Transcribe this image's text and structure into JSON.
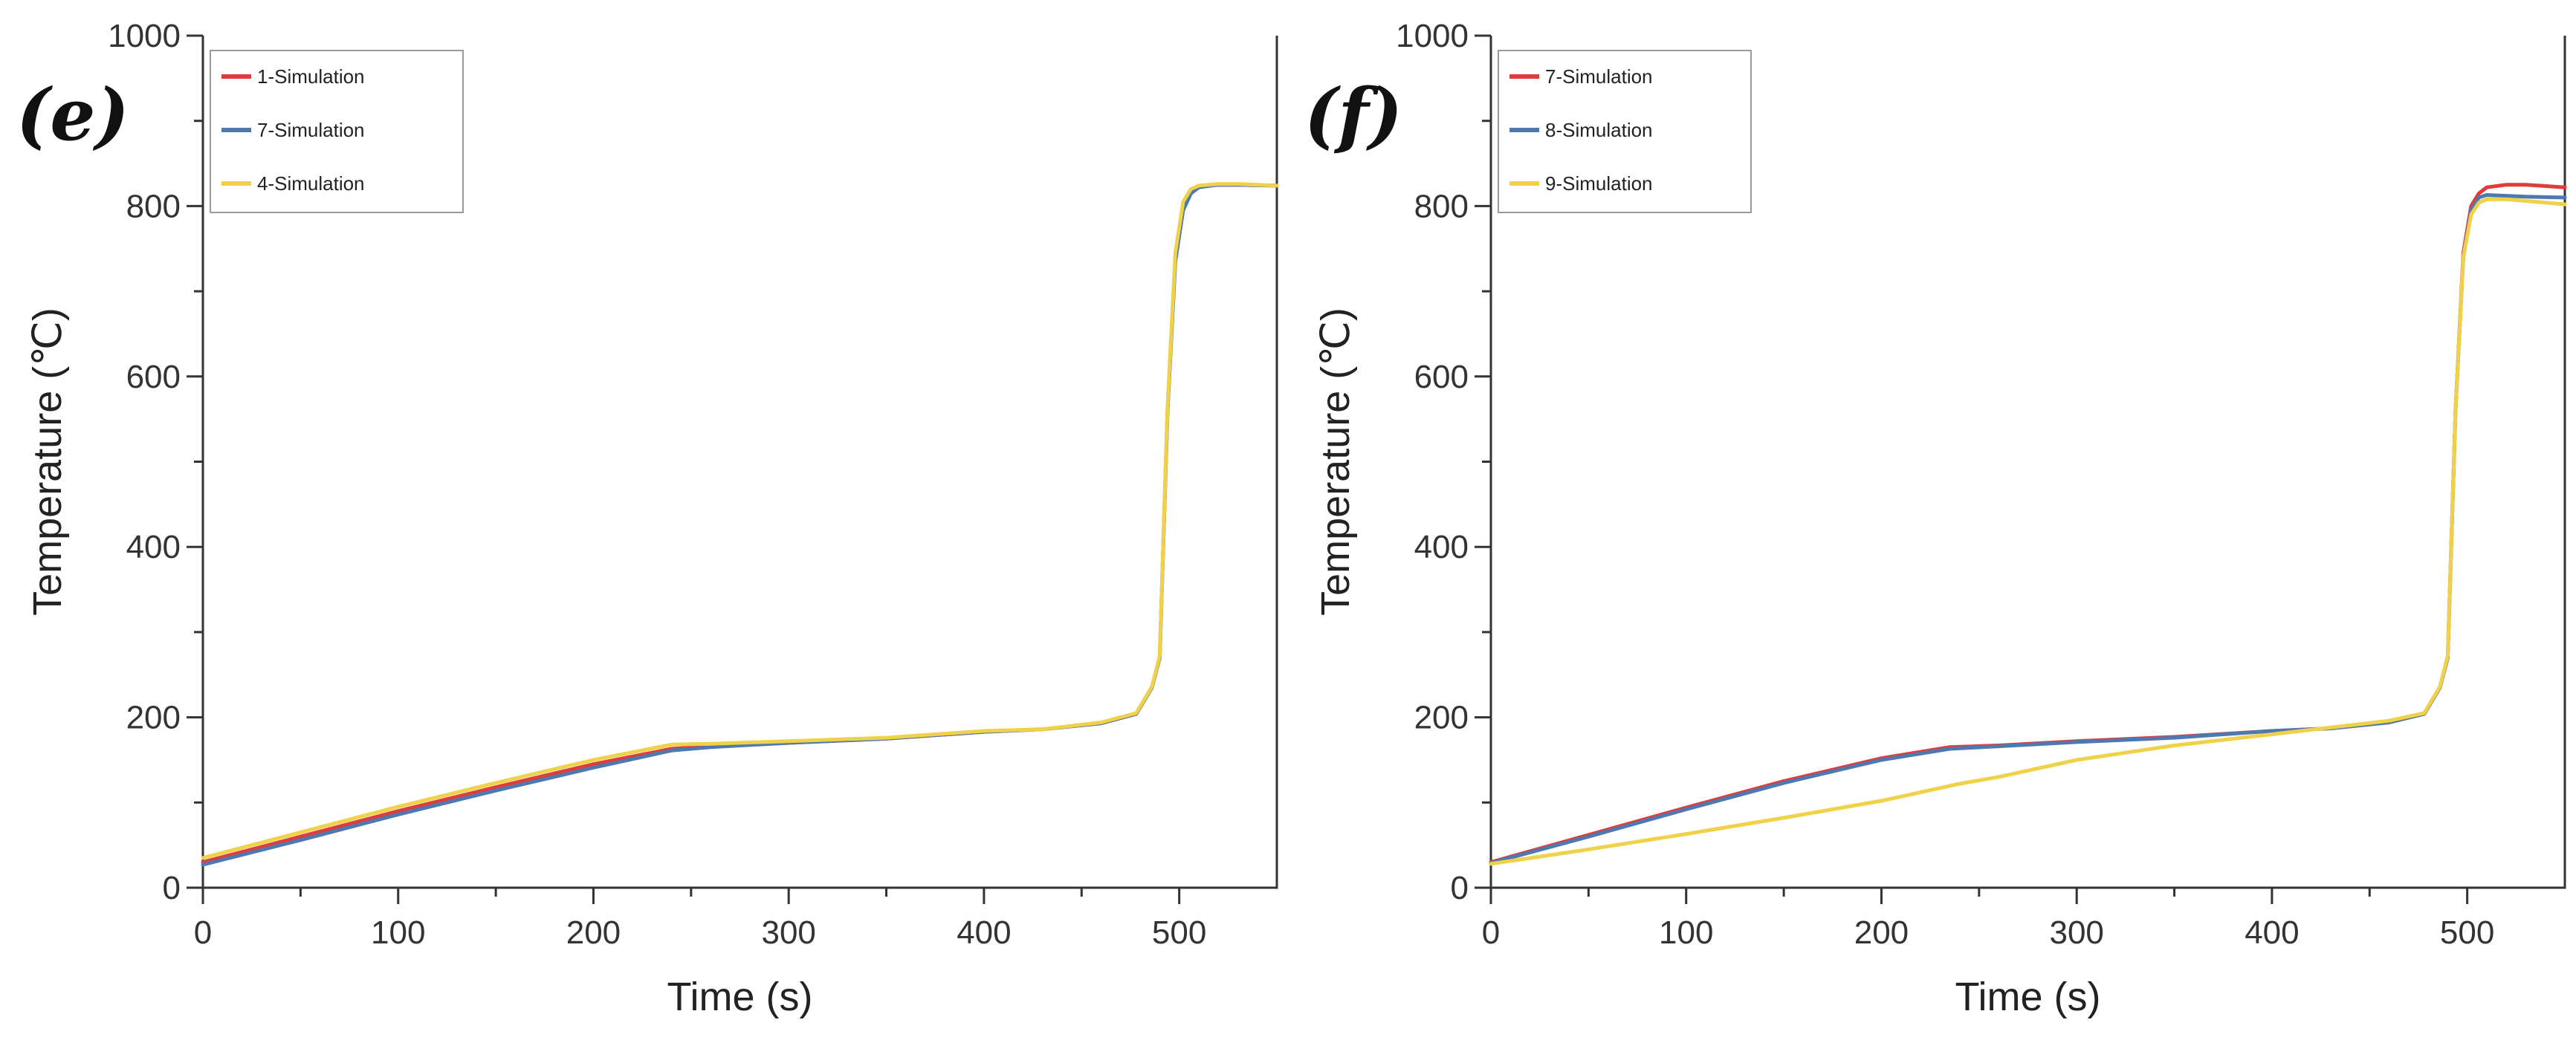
{
  "chart_data": [
    {
      "type": "line",
      "panel_label": "(e)",
      "xlabel": "Time (s)",
      "ylabel": "Temperature (℃)",
      "xlim": [
        0,
        550
      ],
      "ylim": [
        0,
        1000
      ],
      "xticks": [
        0,
        100,
        200,
        300,
        400,
        500
      ],
      "yticks": [
        0,
        200,
        400,
        600,
        800,
        1000
      ],
      "legend_position": "top-left",
      "series": [
        {
          "name": "1-Simulation",
          "color": "#e03c3c",
          "x": [
            0,
            50,
            100,
            150,
            200,
            240,
            260,
            300,
            350,
            400,
            430,
            460,
            478,
            486,
            490,
            494,
            498,
            502,
            506,
            510,
            520,
            530,
            550
          ],
          "y": [
            30,
            60,
            90,
            118,
            145,
            163,
            166,
            170,
            175,
            183,
            186,
            193,
            204,
            235,
            270,
            560,
            740,
            800,
            818,
            823,
            825,
            825,
            824
          ]
        },
        {
          "name": "7-Simulation",
          "color": "#4e79b0",
          "x": [
            0,
            50,
            100,
            150,
            200,
            240,
            260,
            300,
            350,
            400,
            430,
            460,
            478,
            486,
            490,
            494,
            498,
            502,
            506,
            510,
            520,
            530,
            550
          ],
          "y": [
            27,
            56,
            86,
            114,
            141,
            161,
            165,
            170,
            175,
            183,
            186,
            193,
            204,
            235,
            270,
            560,
            735,
            795,
            815,
            822,
            825,
            825,
            824
          ]
        },
        {
          "name": "4-Simulation",
          "color": "#f0d24a",
          "x": [
            0,
            50,
            100,
            150,
            200,
            240,
            260,
            300,
            350,
            400,
            430,
            460,
            478,
            486,
            490,
            494,
            498,
            502,
            506,
            510,
            520,
            530,
            550
          ],
          "y": [
            35,
            65,
            95,
            123,
            150,
            168,
            169,
            172,
            176,
            184,
            186,
            194,
            205,
            236,
            272,
            565,
            745,
            805,
            820,
            824,
            826,
            826,
            824
          ]
        }
      ]
    },
    {
      "type": "line",
      "panel_label": "(f)",
      "xlabel": "Time (s)",
      "ylabel": "Temperature (℃)",
      "xlim": [
        0,
        550
      ],
      "ylim": [
        0,
        1000
      ],
      "xticks": [
        0,
        100,
        200,
        300,
        400,
        500
      ],
      "yticks": [
        0,
        200,
        400,
        600,
        800,
        1000
      ],
      "legend_position": "top-left",
      "series": [
        {
          "name": "7-Simulation",
          "color": "#e03c3c",
          "x": [
            0,
            50,
            100,
            150,
            200,
            235,
            260,
            300,
            350,
            400,
            430,
            460,
            478,
            486,
            490,
            494,
            498,
            502,
            506,
            510,
            520,
            530,
            550
          ],
          "y": [
            30,
            62,
            94,
            125,
            152,
            165,
            167,
            172,
            177,
            184,
            187,
            194,
            204,
            235,
            270,
            560,
            745,
            800,
            815,
            822,
            825,
            825,
            822
          ]
        },
        {
          "name": "8-Simulation",
          "color": "#4e79b0",
          "x": [
            0,
            50,
            100,
            150,
            200,
            235,
            260,
            300,
            350,
            400,
            430,
            460,
            478,
            486,
            490,
            494,
            498,
            502,
            506,
            510,
            520,
            530,
            550
          ],
          "y": [
            29,
            60,
            92,
            123,
            150,
            163,
            166,
            171,
            176,
            184,
            187,
            194,
            204,
            235,
            270,
            560,
            740,
            795,
            810,
            813,
            812,
            811,
            810
          ]
        },
        {
          "name": "9-Simulation",
          "color": "#f0d24a",
          "x": [
            0,
            50,
            100,
            150,
            200,
            240,
            260,
            300,
            350,
            400,
            430,
            460,
            478,
            486,
            490,
            494,
            498,
            502,
            506,
            510,
            520,
            530,
            550
          ],
          "y": [
            28,
            45,
            63,
            82,
            102,
            122,
            130,
            150,
            167,
            180,
            188,
            196,
            205,
            236,
            272,
            560,
            740,
            790,
            804,
            808,
            808,
            806,
            802
          ]
        }
      ]
    }
  ]
}
